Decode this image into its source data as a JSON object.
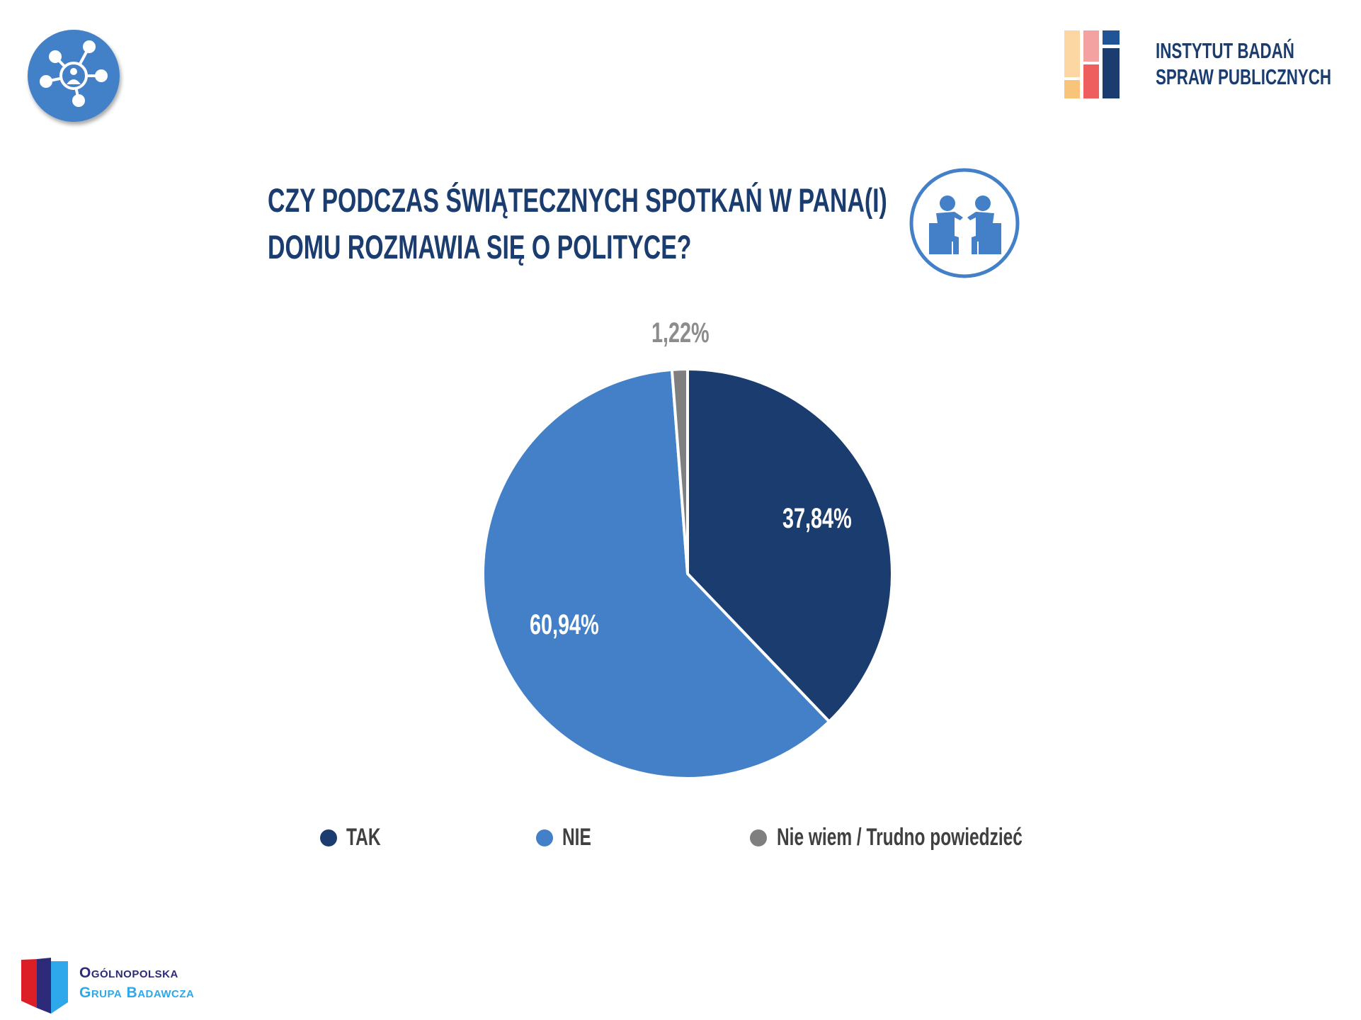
{
  "header": {
    "logo_right_line1": "INSTYTUT BADAŃ",
    "logo_right_line2": "SPRAW PUBLICZNYCH",
    "network_icon": "network-person-icon",
    "conversation_icon": "two-people-talking-icon"
  },
  "footer": {
    "logo_line1": "Ogólnopolska",
    "logo_line2": "Grupa Badawcza"
  },
  "chart_data": {
    "type": "pie",
    "title_line1": "CZY PODCZAS ŚWIĄTECZNYCH SPOTKAŃ W PANA(I)",
    "title_line2": "DOMU ROZMAWIA SIĘ O POLITYCE?",
    "categories": [
      "TAK",
      "NIE",
      "Nie wiem / Trudno powiedzieć"
    ],
    "values": [
      37.84,
      60.94,
      1.22
    ],
    "labels": [
      "37,84%",
      "60,94%",
      "1,22%"
    ],
    "colors": [
      "#1a3c6e",
      "#4380c8",
      "#7f7f7f"
    ],
    "legend_placement": "bottom"
  }
}
